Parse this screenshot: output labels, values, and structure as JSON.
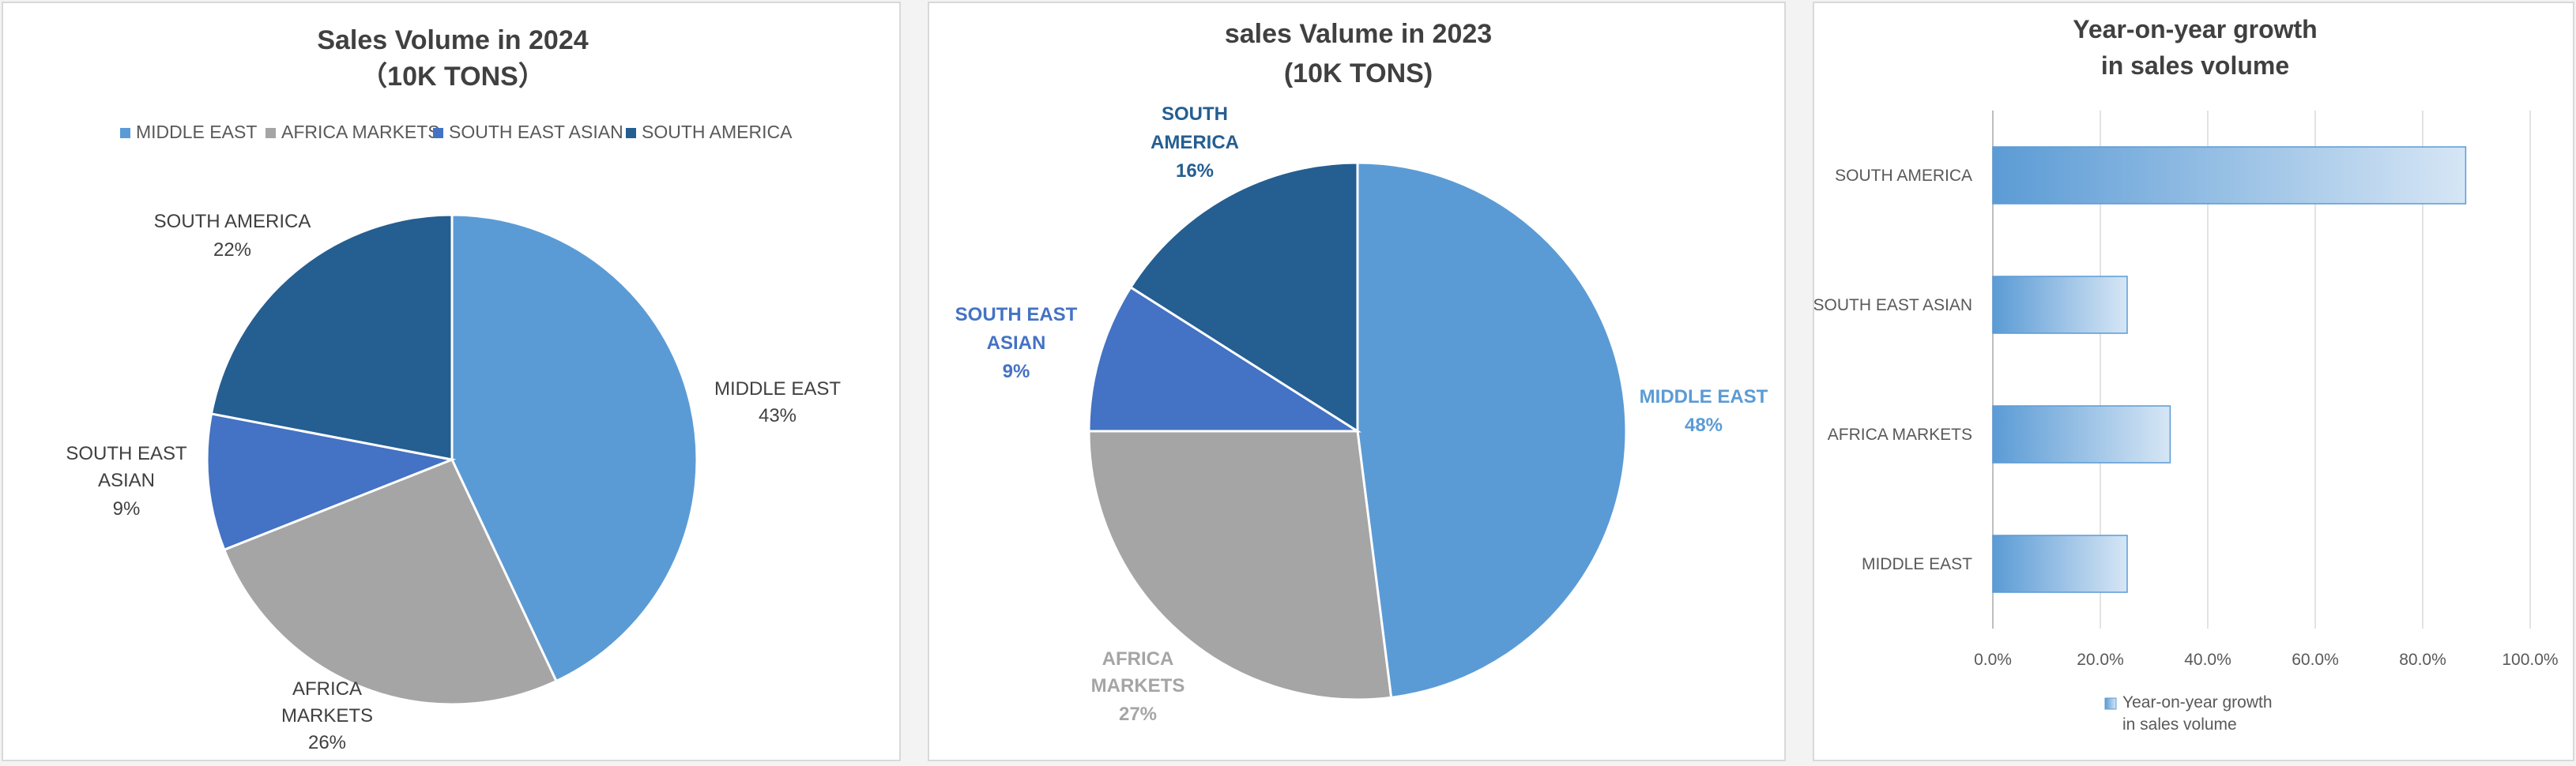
{
  "chart_data": [
    {
      "type": "pie",
      "title": "Sales Volume in 2024",
      "subtitle": "（10K TONS）",
      "legend_position": "top",
      "legend": [
        "MIDDLE EAST",
        "AFRICA MARKETS",
        "SOUTH EAST ASIAN",
        "SOUTH AMERICA"
      ],
      "slices": [
        {
          "label": "MIDDLE EAST",
          "percent_label": "43%",
          "value": 43,
          "color": "#5b9bd5"
        },
        {
          "label": "AFRICA MARKETS",
          "percent_label": "26%",
          "value": 26,
          "color": "#a5a5a5"
        },
        {
          "label": "SOUTH EAST ASIAN",
          "percent_label": "9%",
          "value": 9,
          "color": "#4472c4"
        },
        {
          "label": "SOUTH AMERICA",
          "percent_label": "22%",
          "value": 22,
          "color": "#255e91"
        }
      ]
    },
    {
      "type": "pie",
      "title": "sales Valume in 2023",
      "subtitle": "(10K TONS)",
      "slices": [
        {
          "label": "MIDDLE EAST",
          "percent_label": "48%",
          "value": 48,
          "color": "#5b9bd5"
        },
        {
          "label": "AFRICA MARKETS",
          "percent_label": "27%",
          "value": 27,
          "color": "#a5a5a5"
        },
        {
          "label": "SOUTH EAST ASIAN",
          "percent_label": "9%",
          "value": 9,
          "color": "#4472c4"
        },
        {
          "label": "SOUTH AMERICA",
          "percent_label": "16%",
          "value": 16,
          "color": "#255e91"
        }
      ]
    },
    {
      "type": "bar",
      "orientation": "horizontal",
      "title": "Year-on-year growth in sales volume",
      "categories": [
        "SOUTH AMERICA",
        "SOUTH EAST ASIAN",
        "AFRICA MARKETS",
        "MIDDLE EAST"
      ],
      "series": [
        {
          "name": "Year-on-year growth in sales volume",
          "values": [
            88,
            25,
            33,
            25
          ],
          "color": "#5b9bd5"
        }
      ],
      "xlim": [
        0,
        100
      ],
      "x_ticks": [
        "0.0%",
        "20.0%",
        "40.0%",
        "60.0%",
        "80.0%",
        "100.0%"
      ],
      "grid": true,
      "legend_position": "bottom"
    }
  ]
}
